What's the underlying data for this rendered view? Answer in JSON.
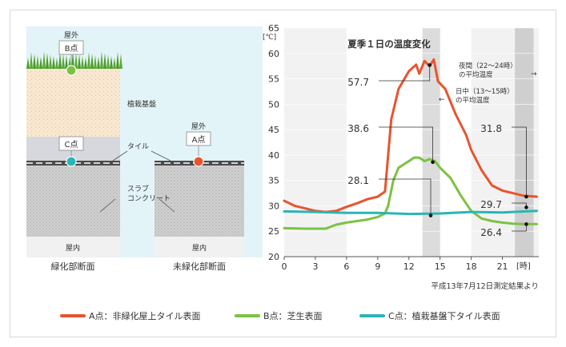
{
  "diagram": {
    "point_b_top": "屋外",
    "point_b_name": "B点",
    "layer_soil": "植栽基盤",
    "point_c_name": "C点",
    "tile_label": "タイル",
    "point_a_top": "屋外",
    "point_a_name": "A点",
    "slab_label_line1": "スラブ",
    "slab_label_line2": "コンクリート",
    "indoor_left": "屋内",
    "indoor_right": "屋内",
    "caption_left": "緑化部断面",
    "caption_right": "未緑化部断面"
  },
  "colors": {
    "point_a": "#e8542e",
    "point_b": "#7cc242",
    "point_c": "#2ab5b5",
    "sky": "#e3f4f8",
    "soil": "#fae7cf",
    "concrete": "#d2d2d2"
  },
  "chart_data": {
    "type": "line",
    "title": "夏季１日の温度変化",
    "unit_label": "[℃]",
    "x_unit_label": "[時]",
    "xlim": [
      0,
      24.5
    ],
    "ylim": [
      20,
      65
    ],
    "x_ticks": [
      "0",
      "3",
      "6",
      "9",
      "12",
      "15",
      "18",
      "21"
    ],
    "y_ticks": [
      "20",
      "25",
      "30",
      "35",
      "40",
      "45",
      "50",
      "55",
      "60",
      "65"
    ],
    "source_note": "平成13年7月12日測定結果より",
    "bands": [
      {
        "from": 13.3,
        "to": 15,
        "kind": "daytime",
        "label_line1": "日中（13〜15時）",
        "label_line2": "の平均温度",
        "arrow": "←"
      },
      {
        "from": 22.2,
        "to": 24,
        "kind": "night",
        "label_line1": "夜間（22〜24時）",
        "label_line2": "の平均温度",
        "arrow": "→"
      }
    ],
    "annotations": [
      {
        "text": "57.7",
        "x": 14,
        "y": 57.7
      },
      {
        "text": "38.6",
        "x": 14.3,
        "y": 38.6
      },
      {
        "text": "28.1",
        "x": 14.1,
        "y": 28.1
      },
      {
        "text": "31.8",
        "x": 23.3,
        "y": 31.8
      },
      {
        "text": "29.7",
        "x": 23.3,
        "y": 29.7
      },
      {
        "text": "26.4",
        "x": 23.3,
        "y": 26.4
      }
    ],
    "series": [
      {
        "name": "A点：非緑化屋上タイル表面",
        "color": "#e8542e",
        "x": [
          0,
          1,
          2,
          3,
          4,
          5,
          6,
          7,
          8,
          9,
          9.7,
          10.3,
          11,
          12,
          12.7,
          13,
          13.5,
          14,
          14.4,
          14.8,
          15.5,
          16.5,
          17.5,
          18,
          19,
          20,
          21,
          22,
          23,
          24.3
        ],
        "y": [
          31,
          30,
          29.5,
          29,
          28.8,
          29,
          29.8,
          30.5,
          31.3,
          31.8,
          32.8,
          47,
          53,
          56.5,
          57.8,
          56,
          58.5,
          57.5,
          58.8,
          54.5,
          53,
          48,
          44,
          41,
          37,
          34,
          33,
          32.5,
          32,
          31.8
        ]
      },
      {
        "name": "B点：芝生表面",
        "color": "#7cc242",
        "x": [
          0,
          2,
          3,
          4,
          5,
          6,
          7,
          8,
          9,
          9.7,
          10,
          10.5,
          11,
          12,
          12.5,
          13,
          13.5,
          14,
          14.5,
          15,
          16,
          17,
          18,
          19,
          20,
          21,
          22,
          23,
          24.3
        ],
        "y": [
          25.6,
          25.5,
          25.5,
          25.5,
          26.3,
          26.7,
          27,
          27.3,
          27.8,
          28.5,
          30,
          35,
          37.5,
          38.8,
          39.5,
          39.5,
          38.8,
          39.2,
          38.8,
          37.5,
          35.5,
          32,
          29,
          27.5,
          27,
          26.7,
          26.5,
          26.4,
          26.4
        ]
      },
      {
        "name": "C点：植栽基盤下タイル表面",
        "color": "#2ab5b5",
        "x": [
          0,
          3,
          6,
          9,
          12,
          15,
          18,
          21,
          24.3
        ],
        "y": [
          28.9,
          28.8,
          28.6,
          28.6,
          28.4,
          28.5,
          28.8,
          28.7,
          29
        ]
      }
    ]
  }
}
